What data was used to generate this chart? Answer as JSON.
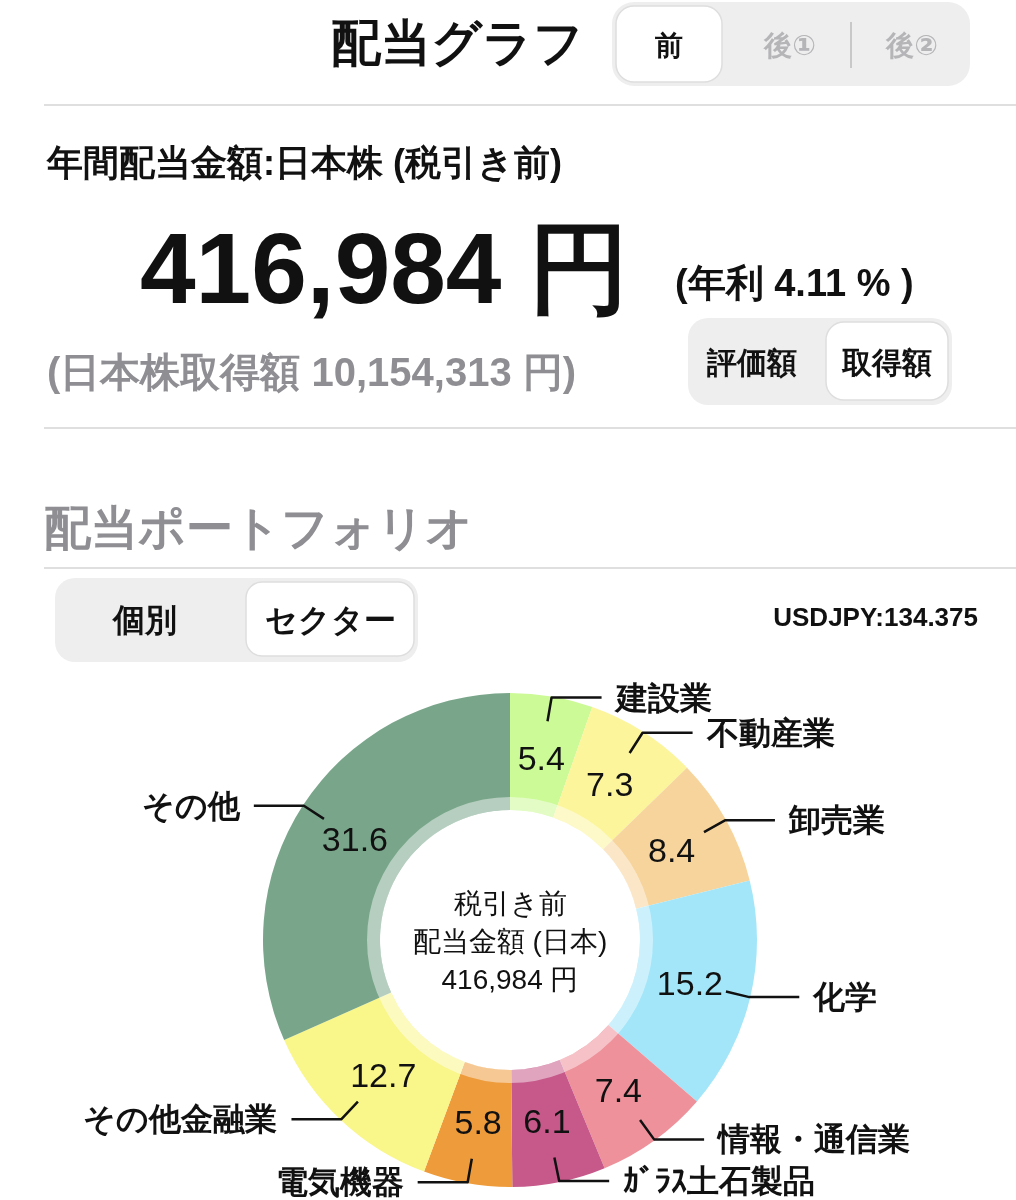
{
  "chart_data": {
    "type": "donut",
    "title": "配当ポートフォリオ",
    "categories": [
      "建設業",
      "不動産業",
      "卸売業",
      "化学",
      "情報・通信業",
      "ｶﾞﾗｽ土石製品",
      "電気機器",
      "その他金融業",
      "その他"
    ],
    "values": [
      5.4,
      7.3,
      8.4,
      15.2,
      7.4,
      6.1,
      5.8,
      12.7,
      31.6
    ],
    "colors": [
      "#ccfa96",
      "#fcf59b",
      "#f7d49b",
      "#a3e6fa",
      "#ee919a",
      "#c6598a",
      "#ee9b3b",
      "#f9f68a",
      "#79a68a"
    ],
    "data_labels": true,
    "annotations": [
      "配当グラフ",
      "前",
      "後①",
      "後②",
      "年間配当金額:日本株 (税引き前)",
      "416,984 円",
      "(年利 4.11 % )",
      "(日本株取得額 10,154,313 円)",
      "評価額",
      "取得額",
      "個別",
      "セクター",
      "USDJPY:134.375",
      "税引き前",
      "配当金額 (日本)",
      "416,984 円"
    ]
  }
}
